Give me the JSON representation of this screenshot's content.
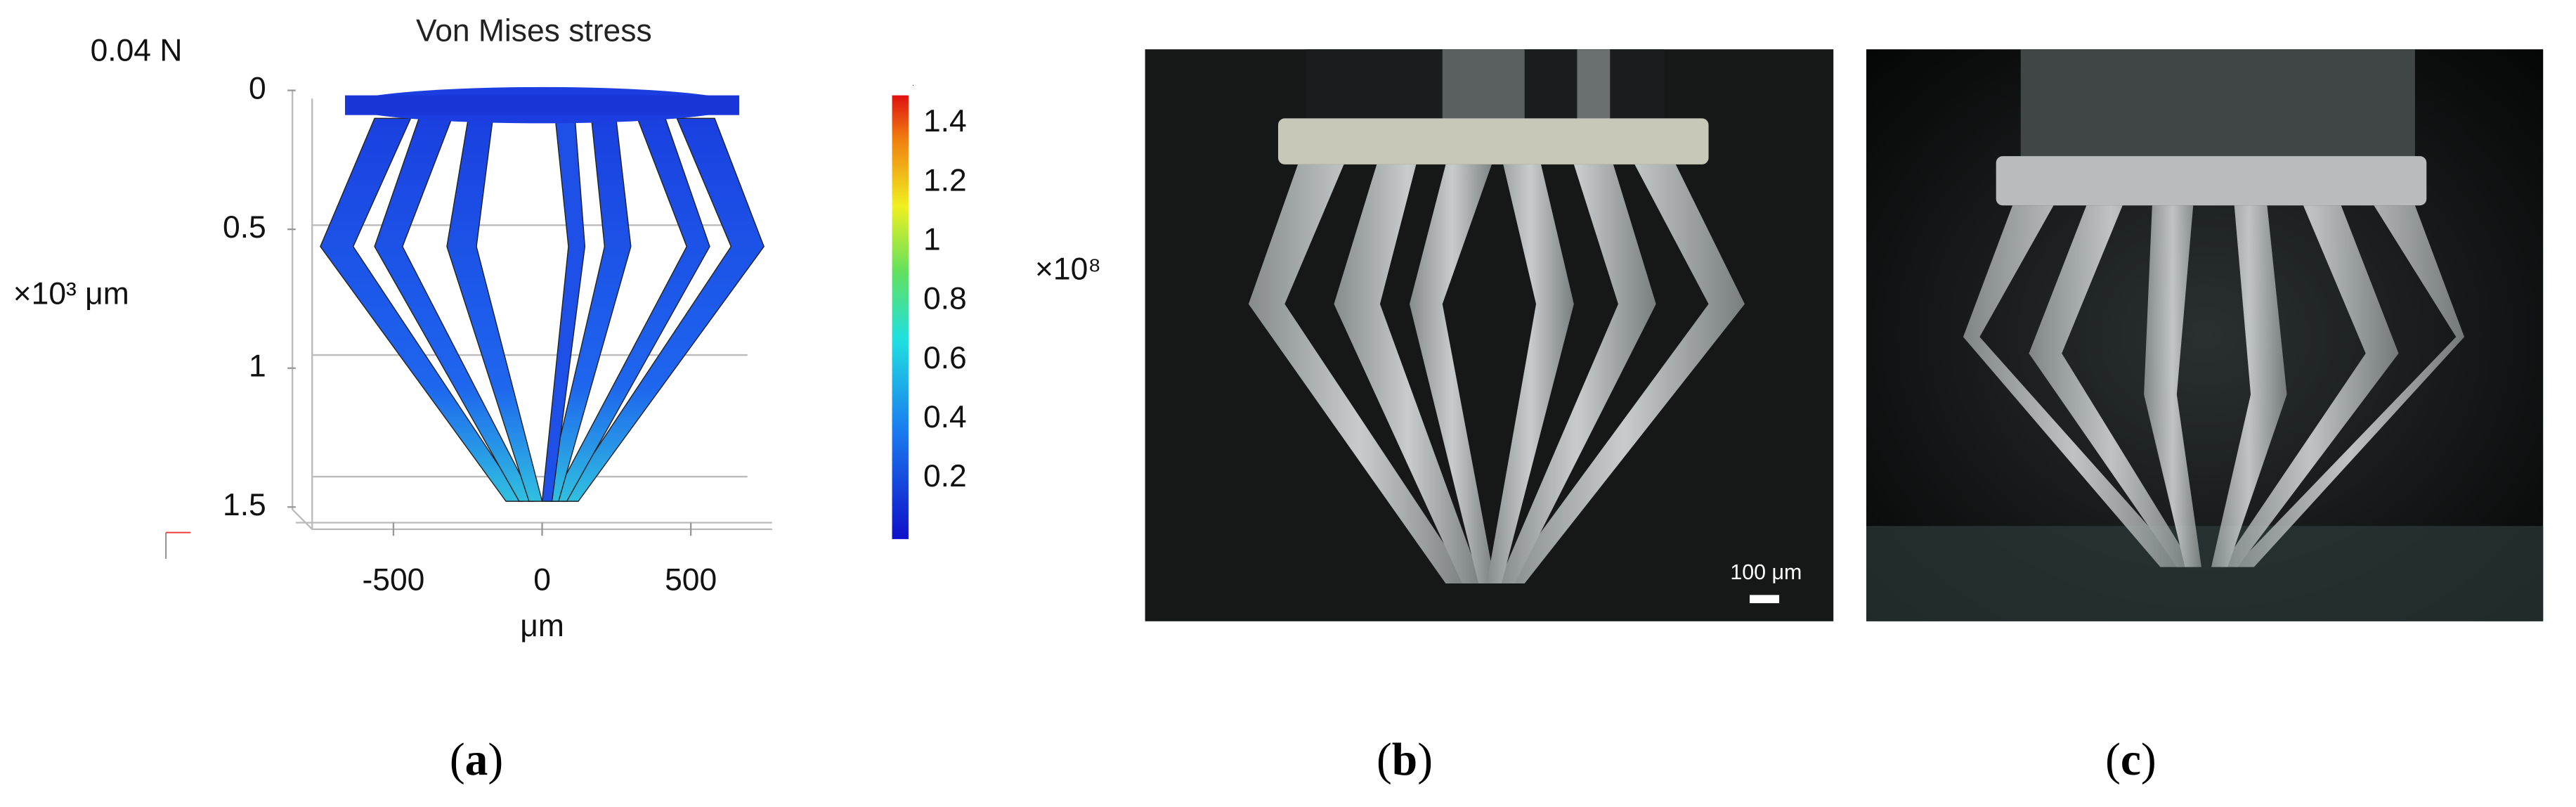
{
  "figure": {
    "panel_a": {
      "force": "0.04 N",
      "title": "Von Mises stress",
      "y_label": "×10³ μm",
      "y_ticks": [
        0,
        0.5,
        1,
        1.5
      ],
      "x_label": "μm",
      "x_ticks": [
        -500,
        0,
        500
      ],
      "colorbar_ticks": [
        1.4,
        1.2,
        1,
        0.8,
        0.6,
        0.4,
        0.2
      ],
      "stray_label": "×10⁸"
    },
    "panel_b": {
      "scale_bar": "100 μm"
    },
    "captions": [
      {
        "open": "(",
        "letter": "a",
        "close": ")"
      },
      {
        "open": "(",
        "letter": "b",
        "close": ")"
      },
      {
        "open": "(",
        "letter": "c",
        "close": ")"
      }
    ]
  }
}
